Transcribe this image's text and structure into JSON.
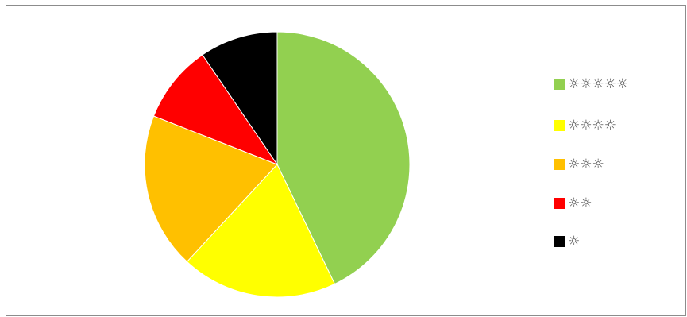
{
  "chart_data": {
    "type": "pie",
    "slices": [
      {
        "label": "☼☼☼☼☼",
        "value": 45,
        "color": "#92d050"
      },
      {
        "label": "☼☼☼☼",
        "value": 20,
        "color": "#ffff00"
      },
      {
        "label": "☼☼☼",
        "value": 20,
        "color": "#ffc000"
      },
      {
        "label": "☼☼",
        "value": 10,
        "color": "#ff0000"
      },
      {
        "label": "☼",
        "value": 10,
        "color": "#000000"
      }
    ],
    "legend_position": "right",
    "start_angle": "12 o'clock",
    "direction": "clockwise"
  }
}
